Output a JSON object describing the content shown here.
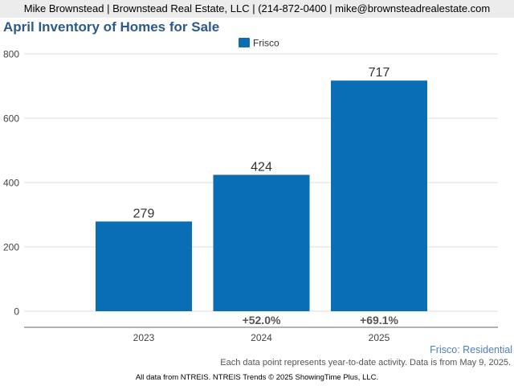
{
  "header": {
    "contact": "Mike Brownstead | Brownstead Real Estate, LLC | (214-872-0400 | mike@brownsteadrealestate.com"
  },
  "chart_data": {
    "type": "bar",
    "title": "April Inventory of Homes for Sale",
    "categories": [
      "2023",
      "2024",
      "2025"
    ],
    "series": [
      {
        "name": "Frisco",
        "values": [
          279,
          424,
          717
        ],
        "color": "#0a6eb4"
      }
    ],
    "changes": [
      "",
      "+52.0%",
      "+69.1%"
    ],
    "ylim": [
      0,
      800
    ],
    "yticks": [
      0,
      200,
      400,
      600,
      800
    ],
    "grid": true,
    "legend": "top-center",
    "xlabel": "",
    "ylabel": ""
  },
  "footer": {
    "series_label": "Frisco: Residential",
    "note": "Each data point represents year-to-date activity. Data is from May 9, 2025.",
    "source": "All data from NTREIS. NTREIS Trends © 2025 ShowingTime Plus, LLC."
  }
}
